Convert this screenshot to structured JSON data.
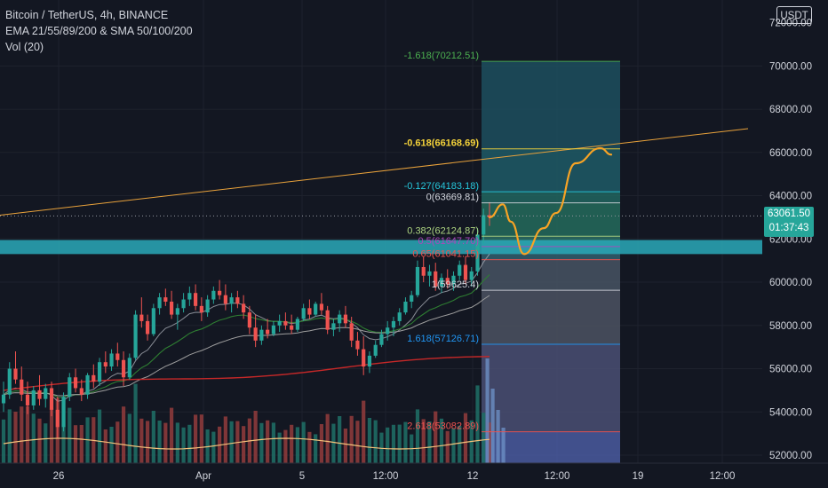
{
  "header": {
    "symbol": "Bitcoin / TetherUS, 4h, BINANCE",
    "indicators": "EMA 21/55/89/200 & SMA 50/100/200",
    "volume": "Vol (20)",
    "currency": "USDT"
  },
  "last_price": {
    "price": "63061.50",
    "countdown": "01:37:43"
  },
  "chart_data": {
    "type": "candlestick",
    "y_axis": {
      "range": [
        51500,
        72500
      ],
      "ticks": [
        52000,
        54000,
        56000,
        58000,
        60000,
        62000,
        64000,
        66000,
        68000,
        70000
      ],
      "tick_labels": [
        "52000.00",
        "54000.00",
        "56000.00",
        "58000.00",
        "60000.00",
        "62000.00",
        "64000.00",
        "66000.00",
        "68000.00",
        "70000.00"
      ],
      "top_label_partial": "72000.00"
    },
    "x_axis": {
      "tick_labels": [
        "26",
        "Apr",
        "5",
        "12:00",
        "12",
        "12:00",
        "19",
        "12:00"
      ]
    },
    "resistance_zone": [
      61300,
      61950
    ],
    "current_price_line": 63061.5,
    "fibonacci": {
      "levels": [
        {
          "label": "-1.618(70212.51)",
          "value": 70212.51,
          "color": "#4caf50"
        },
        {
          "label": "-0.618(66168.69)",
          "value": 66168.69,
          "color": "#f5d33a"
        },
        {
          "label": "-0.127(64183.18)",
          "value": 64183.18,
          "color": "#26c6da"
        },
        {
          "label": "0(63669.81)",
          "value": 63669.81,
          "color": "#d1d4dc"
        },
        {
          "label": "0.382(62124.87)",
          "value": 62124.87,
          "color": "#aed581"
        },
        {
          "label": "0.5(61647.70)",
          "value": 61647.7,
          "color": "#ab47bc"
        },
        {
          "label": "0.65(61041.15)",
          "value": 61041.15,
          "color": "#ef5350"
        },
        {
          "label": "1(59625.4)",
          "value": 59625.4,
          "color": "#d1d4dc"
        },
        {
          "label": "1.618(57126.71)",
          "value": 57126.71,
          "color": "#2196f3"
        },
        {
          "label": "2.618(53082.89)",
          "value": 53082.89,
          "color": "#ef5350"
        }
      ]
    },
    "trendline": {
      "start": 63100,
      "end": 67100
    },
    "projection_path": [
      63000,
      63600,
      62800,
      61300,
      62500,
      63200,
      65500,
      66200,
      65900
    ],
    "candles": [
      [
        54400,
        55400,
        54000,
        54800
      ],
      [
        54800,
        56300,
        54600,
        56000
      ],
      [
        56000,
        56800,
        55300,
        55500
      ],
      [
        55500,
        56100,
        54500,
        54800
      ],
      [
        54800,
        55400,
        53900,
        54300
      ],
      [
        54300,
        55200,
        54100,
        55000
      ],
      [
        55000,
        55700,
        54300,
        54600
      ],
      [
        54600,
        55300,
        54200,
        55100
      ],
      [
        55100,
        55400,
        53800,
        54100
      ],
      [
        54100,
        54700,
        52800,
        53300
      ],
      [
        53300,
        54900,
        53100,
        54700
      ],
      [
        54700,
        55800,
        54500,
        55600
      ],
      [
        55600,
        56000,
        54900,
        55100
      ],
      [
        55100,
        55500,
        54500,
        54800
      ],
      [
        54800,
        55800,
        54600,
        55700
      ],
      [
        55700,
        56200,
        55100,
        55400
      ],
      [
        55400,
        56500,
        55200,
        56300
      ],
      [
        56300,
        56800,
        55800,
        56100
      ],
      [
        56100,
        56900,
        55900,
        56700
      ],
      [
        56700,
        57200,
        56100,
        56400
      ],
      [
        56400,
        56800,
        55200,
        55600
      ],
      [
        55600,
        56700,
        55500,
        56500
      ],
      [
        56500,
        58700,
        56400,
        58500
      ],
      [
        58500,
        59300,
        57900,
        58200
      ],
      [
        58200,
        58500,
        57300,
        57600
      ],
      [
        57600,
        59000,
        57500,
        58800
      ],
      [
        58800,
        59500,
        58500,
        59300
      ],
      [
        59300,
        59700,
        58900,
        59100
      ],
      [
        59100,
        59600,
        58300,
        58500
      ],
      [
        58500,
        59000,
        57800,
        58800
      ],
      [
        58800,
        59500,
        58600,
        59200
      ],
      [
        59200,
        59800,
        58900,
        59500
      ],
      [
        59500,
        59900,
        58700,
        58900
      ],
      [
        58900,
        59300,
        58200,
        58600
      ],
      [
        58600,
        59400,
        58400,
        59200
      ],
      [
        59200,
        59800,
        59000,
        59600
      ],
      [
        59600,
        60100,
        59200,
        59400
      ],
      [
        59400,
        59900,
        58700,
        59000
      ],
      [
        59000,
        59500,
        58600,
        59300
      ],
      [
        59300,
        59600,
        58800,
        59000
      ],
      [
        59000,
        59400,
        58300,
        58600
      ],
      [
        58600,
        58900,
        57600,
        57900
      ],
      [
        57900,
        58500,
        57000,
        57300
      ],
      [
        57300,
        58000,
        57100,
        57800
      ],
      [
        57800,
        58300,
        57400,
        57600
      ],
      [
        57600,
        58200,
        57500,
        58000
      ],
      [
        58000,
        58500,
        57700,
        58200
      ],
      [
        58200,
        58600,
        57800,
        58000
      ],
      [
        58000,
        58500,
        57600,
        57800
      ],
      [
        57800,
        58400,
        57700,
        58300
      ],
      [
        58300,
        59000,
        58200,
        58800
      ],
      [
        58800,
        59200,
        58300,
        58500
      ],
      [
        58500,
        59100,
        58400,
        59000
      ],
      [
        59000,
        59500,
        58500,
        58700
      ],
      [
        58700,
        58900,
        57600,
        57800
      ],
      [
        57800,
        58300,
        57500,
        58100
      ],
      [
        58100,
        58700,
        57700,
        58500
      ],
      [
        58500,
        58900,
        57900,
        58100
      ],
      [
        58100,
        58400,
        57000,
        57300
      ],
      [
        57300,
        57700,
        56600,
        56900
      ],
      [
        56900,
        57500,
        55700,
        56100
      ],
      [
        56100,
        56800,
        55800,
        56600
      ],
      [
        56600,
        57300,
        56500,
        57100
      ],
      [
        57100,
        57800,
        57000,
        57600
      ],
      [
        57600,
        58200,
        57300,
        57900
      ],
      [
        57900,
        58400,
        57500,
        58200
      ],
      [
        58200,
        58800,
        58000,
        58600
      ],
      [
        58600,
        59300,
        58500,
        59100
      ],
      [
        59100,
        59600,
        58800,
        59400
      ],
      [
        59400,
        61000,
        59300,
        60700
      ],
      [
        60700,
        61200,
        60000,
        60300
      ],
      [
        60300,
        60800,
        59800,
        60500
      ],
      [
        60500,
        60900,
        59600,
        59800
      ],
      [
        59800,
        60400,
        59500,
        60200
      ],
      [
        60200,
        60600,
        59700,
        59900
      ],
      [
        59900,
        60500,
        59600,
        60300
      ],
      [
        60300,
        61000,
        60100,
        60800
      ],
      [
        60800,
        61200,
        59900,
        60100
      ],
      [
        60100,
        60700,
        59800,
        60500
      ],
      [
        60500,
        62500,
        60300,
        62200
      ],
      [
        62200,
        63400,
        61800,
        63100
      ],
      [
        63100,
        63700,
        62600,
        63000
      ]
    ]
  }
}
